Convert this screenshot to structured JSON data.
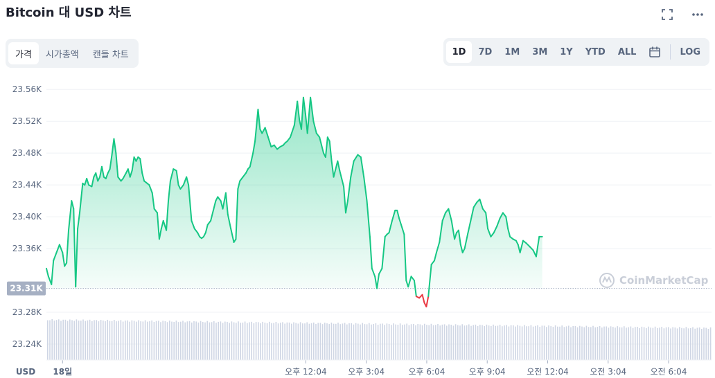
{
  "title": "Bitcoin 대 USD 차트",
  "top_icons": [
    "fullscreen-icon",
    "more-icon"
  ],
  "tabs": [
    {
      "label": "가격",
      "active": true
    },
    {
      "label": "시가총액",
      "active": false
    },
    {
      "label": "캔들 차트",
      "active": false
    }
  ],
  "ranges": [
    {
      "label": "1D",
      "active": true
    },
    {
      "label": "7D",
      "active": false
    },
    {
      "label": "1M",
      "active": false
    },
    {
      "label": "3M",
      "active": false
    },
    {
      "label": "1Y",
      "active": false
    },
    {
      "label": "YTD",
      "active": false
    },
    {
      "label": "ALL",
      "active": false
    }
  ],
  "log_label": "LOG",
  "watermark": "CoinMarketCap",
  "currency_label": "USD",
  "colors": {
    "up": "#16c784",
    "down": "#ea3943",
    "volume": "#cfd6e4"
  },
  "chart_data": {
    "type": "area",
    "baseline": 23310,
    "baseline_label": "23.31K",
    "y_ticks": [
      "23.56K",
      "23.52K",
      "23.48K",
      "23.44K",
      "23.40K",
      "23.36K",
      "23.28K",
      "23.24K"
    ],
    "y_tick_values": [
      23560,
      23520,
      23480,
      23440,
      23400,
      23360,
      23280,
      23240
    ],
    "ylim": [
      23220,
      23575
    ],
    "x_ticks": [
      "18일",
      "오후 12:04",
      "오후 3:04",
      "오후 6:04",
      "오후 9:04",
      "오전 12:04",
      "오전 3:04",
      "오전 6:04"
    ],
    "x_tick_hours": [
      0,
      12.07,
      15.07,
      18.07,
      21.07,
      24.07,
      27.07,
      30.07
    ],
    "xlim_hours": [
      -0.8,
      32.2
    ],
    "points": [
      [
        -0.8,
        23335
      ],
      [
        -0.7,
        23325
      ],
      [
        -0.55,
        23315
      ],
      [
        -0.45,
        23345
      ],
      [
        -0.3,
        23355
      ],
      [
        -0.15,
        23365
      ],
      [
        0,
        23355
      ],
      [
        0.1,
        23338
      ],
      [
        0.2,
        23342
      ],
      [
        0.3,
        23383
      ],
      [
        0.45,
        23420
      ],
      [
        0.55,
        23410
      ],
      [
        0.65,
        23312
      ],
      [
        0.75,
        23385
      ],
      [
        0.85,
        23405
      ],
      [
        1.0,
        23442
      ],
      [
        1.1,
        23440
      ],
      [
        1.2,
        23448
      ],
      [
        1.3,
        23440
      ],
      [
        1.45,
        23438
      ],
      [
        1.55,
        23450
      ],
      [
        1.65,
        23455
      ],
      [
        1.75,
        23445
      ],
      [
        1.85,
        23450
      ],
      [
        1.95,
        23463
      ],
      [
        2.05,
        23450
      ],
      [
        2.15,
        23448
      ],
      [
        2.25,
        23455
      ],
      [
        2.35,
        23460
      ],
      [
        2.45,
        23478
      ],
      [
        2.55,
        23498
      ],
      [
        2.65,
        23480
      ],
      [
        2.75,
        23450
      ],
      [
        2.9,
        23445
      ],
      [
        3.0,
        23448
      ],
      [
        3.15,
        23455
      ],
      [
        3.25,
        23460
      ],
      [
        3.35,
        23450
      ],
      [
        3.45,
        23458
      ],
      [
        3.55,
        23475
      ],
      [
        3.65,
        23470
      ],
      [
        3.75,
        23475
      ],
      [
        3.85,
        23473
      ],
      [
        3.95,
        23455
      ],
      [
        4.05,
        23445
      ],
      [
        4.15,
        23443
      ],
      [
        4.3,
        23440
      ],
      [
        4.45,
        23430
      ],
      [
        4.55,
        23410
      ],
      [
        4.7,
        23405
      ],
      [
        4.8,
        23372
      ],
      [
        4.9,
        23385
      ],
      [
        5.0,
        23395
      ],
      [
        5.15,
        23383
      ],
      [
        5.25,
        23420
      ],
      [
        5.35,
        23445
      ],
      [
        5.5,
        23460
      ],
      [
        5.65,
        23458
      ],
      [
        5.75,
        23440
      ],
      [
        5.85,
        23435
      ],
      [
        6.0,
        23440
      ],
      [
        6.15,
        23450
      ],
      [
        6.25,
        23440
      ],
      [
        6.4,
        23395
      ],
      [
        6.55,
        23385
      ],
      [
        6.7,
        23380
      ],
      [
        6.8,
        23375
      ],
      [
        6.9,
        23373
      ],
      [
        7.0,
        23375
      ],
      [
        7.1,
        23380
      ],
      [
        7.2,
        23390
      ],
      [
        7.35,
        23395
      ],
      [
        7.5,
        23410
      ],
      [
        7.6,
        23420
      ],
      [
        7.7,
        23425
      ],
      [
        7.85,
        23420
      ],
      [
        7.95,
        23410
      ],
      [
        8.1,
        23430
      ],
      [
        8.2,
        23403
      ],
      [
        8.35,
        23385
      ],
      [
        8.5,
        23368
      ],
      [
        8.6,
        23372
      ],
      [
        8.7,
        23435
      ],
      [
        8.8,
        23445
      ],
      [
        8.95,
        23450
      ],
      [
        9.1,
        23455
      ],
      [
        9.2,
        23460
      ],
      [
        9.3,
        23463
      ],
      [
        9.45,
        23480
      ],
      [
        9.55,
        23495
      ],
      [
        9.7,
        23535
      ],
      [
        9.8,
        23510
      ],
      [
        9.9,
        23505
      ],
      [
        10.05,
        23512
      ],
      [
        10.2,
        23500
      ],
      [
        10.35,
        23488
      ],
      [
        10.5,
        23490
      ],
      [
        10.65,
        23485
      ],
      [
        10.8,
        23488
      ],
      [
        10.95,
        23490
      ],
      [
        11.05,
        23493
      ],
      [
        11.15,
        23495
      ],
      [
        11.3,
        23500
      ],
      [
        11.5,
        23515
      ],
      [
        11.65,
        23545
      ],
      [
        11.75,
        23522
      ],
      [
        11.85,
        23510
      ],
      [
        11.95,
        23550
      ],
      [
        12.05,
        23530
      ],
      [
        12.15,
        23505
      ],
      [
        12.3,
        23550
      ],
      [
        12.45,
        23520
      ],
      [
        12.6,
        23505
      ],
      [
        12.75,
        23500
      ],
      [
        12.85,
        23490
      ],
      [
        12.95,
        23480
      ],
      [
        13.05,
        23475
      ],
      [
        13.15,
        23500
      ],
      [
        13.25,
        23495
      ],
      [
        13.35,
        23470
      ],
      [
        13.45,
        23450
      ],
      [
        13.55,
        23460
      ],
      [
        13.65,
        23470
      ],
      [
        13.75,
        23458
      ],
      [
        13.85,
        23448
      ],
      [
        13.95,
        23438
      ],
      [
        14.05,
        23405
      ],
      [
        14.15,
        23420
      ],
      [
        14.3,
        23450
      ],
      [
        14.45,
        23470
      ],
      [
        14.65,
        23478
      ],
      [
        14.8,
        23475
      ],
      [
        14.95,
        23450
      ],
      [
        15.1,
        23420
      ],
      [
        15.25,
        23375
      ],
      [
        15.35,
        23335
      ],
      [
        15.5,
        23325
      ],
      [
        15.6,
        23310
      ],
      [
        15.7,
        23328
      ],
      [
        15.85,
        23335
      ],
      [
        16.0,
        23375
      ],
      [
        16.1,
        23378
      ],
      [
        16.2,
        23380
      ],
      [
        16.35,
        23395
      ],
      [
        16.5,
        23408
      ],
      [
        16.6,
        23408
      ],
      [
        16.7,
        23398
      ],
      [
        16.8,
        23390
      ],
      [
        16.95,
        23378
      ],
      [
        17.05,
        23320
      ],
      [
        17.15,
        23312
      ],
      [
        17.3,
        23325
      ],
      [
        17.45,
        23320
      ],
      [
        17.55,
        23300
      ],
      [
        17.7,
        23298
      ],
      [
        17.85,
        23302
      ],
      [
        17.95,
        23292
      ],
      [
        18.05,
        23287
      ],
      [
        18.15,
        23300
      ],
      [
        18.3,
        23340
      ],
      [
        18.45,
        23345
      ],
      [
        18.55,
        23355
      ],
      [
        18.7,
        23368
      ],
      [
        18.85,
        23395
      ],
      [
        19.0,
        23405
      ],
      [
        19.15,
        23410
      ],
      [
        19.3,
        23395
      ],
      [
        19.45,
        23372
      ],
      [
        19.55,
        23380
      ],
      [
        19.65,
        23383
      ],
      [
        19.75,
        23365
      ],
      [
        19.85,
        23355
      ],
      [
        19.95,
        23360
      ],
      [
        20.1,
        23378
      ],
      [
        20.25,
        23395
      ],
      [
        20.4,
        23412
      ],
      [
        20.55,
        23418
      ],
      [
        20.7,
        23422
      ],
      [
        20.85,
        23410
      ],
      [
        21.0,
        23405
      ],
      [
        21.1,
        23385
      ],
      [
        21.25,
        23375
      ],
      [
        21.4,
        23380
      ],
      [
        21.55,
        23388
      ],
      [
        21.7,
        23398
      ],
      [
        21.85,
        23405
      ],
      [
        22.0,
        23400
      ],
      [
        22.1,
        23385
      ],
      [
        22.2,
        23375
      ],
      [
        22.35,
        23372
      ],
      [
        22.5,
        23370
      ],
      [
        22.6,
        23365
      ],
      [
        22.7,
        23355
      ],
      [
        22.85,
        23370
      ],
      [
        23.0,
        23367
      ],
      [
        23.2,
        23362
      ],
      [
        23.35,
        23358
      ],
      [
        23.5,
        23350
      ],
      [
        23.65,
        23375
      ],
      [
        23.8,
        23375
      ]
    ],
    "volume_note": "volume bars at bottom (values not labeled)"
  }
}
